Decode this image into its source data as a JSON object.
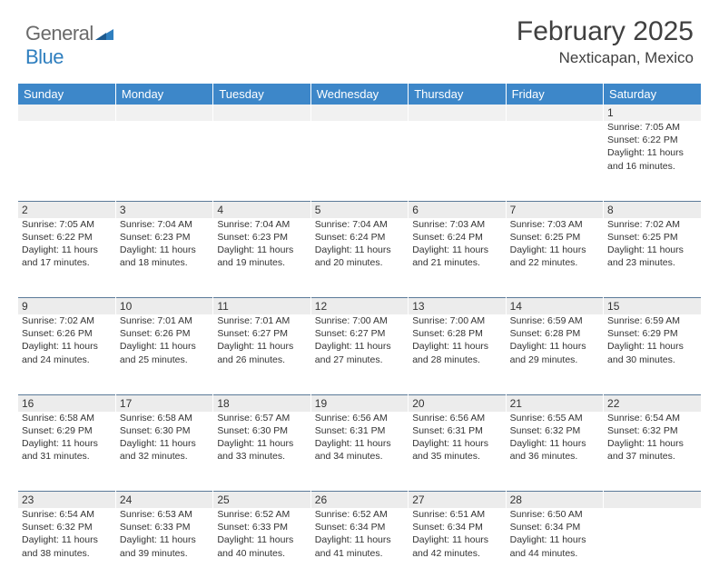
{
  "logo": {
    "text_gray": "General",
    "text_blue": "Blue"
  },
  "title": "February 2025",
  "location": "Nexticapan, Mexico",
  "header_bg": "#3d87c9",
  "daynum_bg": "#ececec",
  "rule_color": "#5b7a99",
  "columns": [
    "Sunday",
    "Monday",
    "Tuesday",
    "Wednesday",
    "Thursday",
    "Friday",
    "Saturday"
  ],
  "weeks": [
    [
      null,
      null,
      null,
      null,
      null,
      null,
      {
        "n": "1",
        "sunrise": "7:05 AM",
        "sunset": "6:22 PM",
        "daylight": "11 hours and 16 minutes."
      }
    ],
    [
      {
        "n": "2",
        "sunrise": "7:05 AM",
        "sunset": "6:22 PM",
        "daylight": "11 hours and 17 minutes."
      },
      {
        "n": "3",
        "sunrise": "7:04 AM",
        "sunset": "6:23 PM",
        "daylight": "11 hours and 18 minutes."
      },
      {
        "n": "4",
        "sunrise": "7:04 AM",
        "sunset": "6:23 PM",
        "daylight": "11 hours and 19 minutes."
      },
      {
        "n": "5",
        "sunrise": "7:04 AM",
        "sunset": "6:24 PM",
        "daylight": "11 hours and 20 minutes."
      },
      {
        "n": "6",
        "sunrise": "7:03 AM",
        "sunset": "6:24 PM",
        "daylight": "11 hours and 21 minutes."
      },
      {
        "n": "7",
        "sunrise": "7:03 AM",
        "sunset": "6:25 PM",
        "daylight": "11 hours and 22 minutes."
      },
      {
        "n": "8",
        "sunrise": "7:02 AM",
        "sunset": "6:25 PM",
        "daylight": "11 hours and 23 minutes."
      }
    ],
    [
      {
        "n": "9",
        "sunrise": "7:02 AM",
        "sunset": "6:26 PM",
        "daylight": "11 hours and 24 minutes."
      },
      {
        "n": "10",
        "sunrise": "7:01 AM",
        "sunset": "6:26 PM",
        "daylight": "11 hours and 25 minutes."
      },
      {
        "n": "11",
        "sunrise": "7:01 AM",
        "sunset": "6:27 PM",
        "daylight": "11 hours and 26 minutes."
      },
      {
        "n": "12",
        "sunrise": "7:00 AM",
        "sunset": "6:27 PM",
        "daylight": "11 hours and 27 minutes."
      },
      {
        "n": "13",
        "sunrise": "7:00 AM",
        "sunset": "6:28 PM",
        "daylight": "11 hours and 28 minutes."
      },
      {
        "n": "14",
        "sunrise": "6:59 AM",
        "sunset": "6:28 PM",
        "daylight": "11 hours and 29 minutes."
      },
      {
        "n": "15",
        "sunrise": "6:59 AM",
        "sunset": "6:29 PM",
        "daylight": "11 hours and 30 minutes."
      }
    ],
    [
      {
        "n": "16",
        "sunrise": "6:58 AM",
        "sunset": "6:29 PM",
        "daylight": "11 hours and 31 minutes."
      },
      {
        "n": "17",
        "sunrise": "6:58 AM",
        "sunset": "6:30 PM",
        "daylight": "11 hours and 32 minutes."
      },
      {
        "n": "18",
        "sunrise": "6:57 AM",
        "sunset": "6:30 PM",
        "daylight": "11 hours and 33 minutes."
      },
      {
        "n": "19",
        "sunrise": "6:56 AM",
        "sunset": "6:31 PM",
        "daylight": "11 hours and 34 minutes."
      },
      {
        "n": "20",
        "sunrise": "6:56 AM",
        "sunset": "6:31 PM",
        "daylight": "11 hours and 35 minutes."
      },
      {
        "n": "21",
        "sunrise": "6:55 AM",
        "sunset": "6:32 PM",
        "daylight": "11 hours and 36 minutes."
      },
      {
        "n": "22",
        "sunrise": "6:54 AM",
        "sunset": "6:32 PM",
        "daylight": "11 hours and 37 minutes."
      }
    ],
    [
      {
        "n": "23",
        "sunrise": "6:54 AM",
        "sunset": "6:32 PM",
        "daylight": "11 hours and 38 minutes."
      },
      {
        "n": "24",
        "sunrise": "6:53 AM",
        "sunset": "6:33 PM",
        "daylight": "11 hours and 39 minutes."
      },
      {
        "n": "25",
        "sunrise": "6:52 AM",
        "sunset": "6:33 PM",
        "daylight": "11 hours and 40 minutes."
      },
      {
        "n": "26",
        "sunrise": "6:52 AM",
        "sunset": "6:34 PM",
        "daylight": "11 hours and 41 minutes."
      },
      {
        "n": "27",
        "sunrise": "6:51 AM",
        "sunset": "6:34 PM",
        "daylight": "11 hours and 42 minutes."
      },
      {
        "n": "28",
        "sunrise": "6:50 AM",
        "sunset": "6:34 PM",
        "daylight": "11 hours and 44 minutes."
      },
      null
    ]
  ],
  "labels": {
    "sunrise": "Sunrise:",
    "sunset": "Sunset:",
    "daylight": "Daylight:"
  }
}
